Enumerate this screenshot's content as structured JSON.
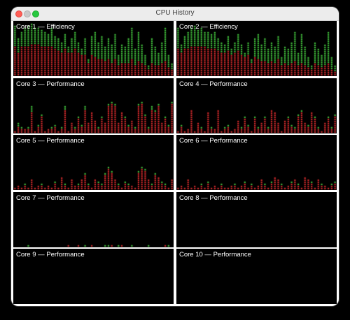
{
  "window": {
    "title": "CPU History"
  },
  "colors": {
    "user": "#3fb83a",
    "system": "#c8282a",
    "background": "#000000"
  },
  "cores": [
    {
      "label": "Core 1 — Efficiency",
      "type": "efficiency",
      "total": [
        0.95,
        0.7,
        0.85,
        0.9,
        0.95,
        1.0,
        0.9,
        0.92,
        0.88,
        0.85,
        0.8,
        0.9,
        0.75,
        0.7,
        0.65,
        0.8,
        0.55,
        0.7,
        0.85,
        0.65,
        0.5,
        0.7,
        0.3,
        0.75,
        0.85,
        0.65,
        0.75,
        0.55,
        0.7,
        0.6,
        0.8,
        0.4,
        0.6,
        0.55,
        0.7,
        0.9,
        0.5,
        0.85,
        0.6,
        0.4,
        0.2,
        0.7,
        0.55,
        0.45,
        0.65,
        0.9,
        0.4,
        0.25
      ],
      "system": [
        0.55,
        0.45,
        0.55,
        0.55,
        0.58,
        0.6,
        0.6,
        0.6,
        0.58,
        0.56,
        0.55,
        0.55,
        0.5,
        0.48,
        0.45,
        0.5,
        0.42,
        0.45,
        0.5,
        0.42,
        0.38,
        0.4,
        0.25,
        0.38,
        0.35,
        0.3,
        0.3,
        0.28,
        0.3,
        0.25,
        0.32,
        0.2,
        0.25,
        0.22,
        0.25,
        0.3,
        0.2,
        0.28,
        0.22,
        0.18,
        0.12,
        0.25,
        0.2,
        0.18,
        0.22,
        0.28,
        0.15,
        0.1
      ]
    },
    {
      "label": "Core 2 — Efficiency",
      "type": "efficiency",
      "total": [
        0.9,
        0.6,
        0.75,
        0.85,
        0.9,
        0.95,
        0.88,
        0.9,
        0.85,
        0.82,
        0.78,
        0.85,
        0.7,
        0.65,
        0.6,
        0.75,
        0.5,
        0.65,
        0.8,
        0.6,
        0.45,
        0.65,
        0.3,
        0.7,
        0.8,
        0.6,
        0.7,
        0.5,
        0.65,
        0.55,
        0.75,
        0.35,
        0.55,
        0.5,
        0.65,
        0.85,
        0.45,
        0.8,
        0.55,
        0.35,
        0.2,
        0.65,
        0.5,
        0.4,
        0.6,
        0.85,
        0.35,
        0.2
      ],
      "system": [
        0.5,
        0.42,
        0.5,
        0.52,
        0.55,
        0.58,
        0.57,
        0.56,
        0.55,
        0.53,
        0.52,
        0.52,
        0.48,
        0.45,
        0.42,
        0.48,
        0.4,
        0.42,
        0.48,
        0.4,
        0.35,
        0.38,
        0.22,
        0.35,
        0.32,
        0.28,
        0.28,
        0.25,
        0.28,
        0.22,
        0.3,
        0.18,
        0.22,
        0.2,
        0.22,
        0.28,
        0.18,
        0.25,
        0.2,
        0.15,
        0.1,
        0.22,
        0.18,
        0.15,
        0.2,
        0.25,
        0.12,
        0.08
      ]
    },
    {
      "label": "Core 3 — Performance",
      "type": "performance",
      "total": [
        0.05,
        0.2,
        0.1,
        0.08,
        0.1,
        0.5,
        0.05,
        0.15,
        0.35,
        0.05,
        0.08,
        0.1,
        0.15,
        0.05,
        0.1,
        0.5,
        0.05,
        0.2,
        0.1,
        0.3,
        0.15,
        0.5,
        0.2,
        0.4,
        0.25,
        0.1,
        0.3,
        0.2,
        0.55,
        0.6,
        0.55,
        0.2,
        0.4,
        0.3,
        0.15,
        0.25,
        0.1,
        0.55,
        0.6,
        0.35,
        0.1,
        0.5,
        0.45,
        0.55,
        0.2,
        0.3,
        0.15,
        0.6
      ],
      "system": [
        0.04,
        0.1,
        0.08,
        0.06,
        0.08,
        0.4,
        0.04,
        0.12,
        0.3,
        0.04,
        0.06,
        0.08,
        0.12,
        0.04,
        0.08,
        0.45,
        0.04,
        0.18,
        0.08,
        0.28,
        0.12,
        0.45,
        0.18,
        0.38,
        0.22,
        0.08,
        0.28,
        0.18,
        0.52,
        0.55,
        0.5,
        0.18,
        0.38,
        0.28,
        0.12,
        0.22,
        0.08,
        0.5,
        0.55,
        0.32,
        0.08,
        0.45,
        0.4,
        0.5,
        0.18,
        0.28,
        0.12,
        0.55
      ]
    },
    {
      "label": "Core 4 — Performance",
      "type": "performance",
      "total": [
        0.05,
        0.15,
        0.05,
        0.08,
        0.45,
        0.05,
        0.2,
        0.1,
        0.05,
        0.4,
        0.1,
        0.08,
        0.45,
        0.05,
        0.1,
        0.15,
        0.05,
        0.08,
        0.25,
        0.1,
        0.3,
        0.15,
        0.05,
        0.3,
        0.1,
        0.2,
        0.3,
        0.1,
        0.45,
        0.4,
        0.2,
        0.05,
        0.25,
        0.3,
        0.15,
        0.1,
        0.35,
        0.45,
        0.2,
        0.15,
        0.4,
        0.3,
        0.1,
        0.05,
        0.2,
        0.3,
        0.1,
        0.35
      ],
      "system": [
        0.04,
        0.12,
        0.04,
        0.06,
        0.42,
        0.04,
        0.18,
        0.08,
        0.04,
        0.38,
        0.08,
        0.06,
        0.42,
        0.04,
        0.08,
        0.12,
        0.04,
        0.06,
        0.22,
        0.08,
        0.28,
        0.12,
        0.04,
        0.28,
        0.08,
        0.18,
        0.28,
        0.08,
        0.42,
        0.38,
        0.18,
        0.04,
        0.22,
        0.28,
        0.12,
        0.08,
        0.32,
        0.4,
        0.18,
        0.12,
        0.38,
        0.28,
        0.08,
        0.04,
        0.18,
        0.28,
        0.08,
        0.32
      ]
    },
    {
      "label": "Core 5 — Performance",
      "type": "performance",
      "total": [
        0.05,
        0.08,
        0.05,
        0.1,
        0.05,
        0.2,
        0.05,
        0.08,
        0.1,
        0.05,
        0.08,
        0.05,
        0.15,
        0.05,
        0.25,
        0.1,
        0.05,
        0.2,
        0.08,
        0.1,
        0.2,
        0.3,
        0.1,
        0.05,
        0.2,
        0.15,
        0.1,
        0.3,
        0.45,
        0.35,
        0.2,
        0.1,
        0.05,
        0.15,
        0.1,
        0.08,
        0.05,
        0.35,
        0.45,
        0.4,
        0.2,
        0.1,
        0.3,
        0.25,
        0.15,
        0.1,
        0.05,
        0.2
      ],
      "system": [
        0.04,
        0.06,
        0.04,
        0.08,
        0.04,
        0.18,
        0.04,
        0.06,
        0.08,
        0.04,
        0.06,
        0.04,
        0.12,
        0.04,
        0.22,
        0.08,
        0.04,
        0.18,
        0.06,
        0.08,
        0.18,
        0.28,
        0.08,
        0.04,
        0.18,
        0.12,
        0.08,
        0.28,
        0.4,
        0.32,
        0.18,
        0.08,
        0.04,
        0.12,
        0.08,
        0.06,
        0.04,
        0.32,
        0.4,
        0.36,
        0.18,
        0.08,
        0.28,
        0.22,
        0.12,
        0.08,
        0.04,
        0.18
      ]
    },
    {
      "label": "Core 6 — Performance",
      "type": "performance",
      "total": [
        0.05,
        0.08,
        0.05,
        0.2,
        0.05,
        0.08,
        0.05,
        0.1,
        0.05,
        0.15,
        0.05,
        0.08,
        0.05,
        0.1,
        0.05,
        0.05,
        0.08,
        0.1,
        0.05,
        0.08,
        0.15,
        0.05,
        0.1,
        0.05,
        0.08,
        0.2,
        0.1,
        0.05,
        0.15,
        0.25,
        0.2,
        0.1,
        0.05,
        0.08,
        0.15,
        0.2,
        0.1,
        0.05,
        0.25,
        0.2,
        0.15,
        0.05,
        0.2,
        0.1,
        0.08,
        0.05,
        0.1,
        0.15
      ],
      "system": [
        0.04,
        0.06,
        0.04,
        0.18,
        0.04,
        0.06,
        0.04,
        0.08,
        0.04,
        0.12,
        0.04,
        0.06,
        0.04,
        0.08,
        0.04,
        0.04,
        0.06,
        0.08,
        0.04,
        0.06,
        0.12,
        0.04,
        0.08,
        0.04,
        0.06,
        0.18,
        0.08,
        0.04,
        0.12,
        0.22,
        0.18,
        0.08,
        0.04,
        0.06,
        0.12,
        0.18,
        0.08,
        0.04,
        0.22,
        0.18,
        0.12,
        0.04,
        0.18,
        0.08,
        0.06,
        0.04,
        0.08,
        0.12
      ]
    },
    {
      "label": "Core 7 — Performance",
      "type": "performance",
      "total": [
        0,
        0,
        0,
        0,
        0.04,
        0,
        0,
        0,
        0,
        0,
        0,
        0,
        0,
        0,
        0,
        0,
        0.04,
        0,
        0,
        0.05,
        0,
        0.04,
        0,
        0.05,
        0,
        0,
        0,
        0.05,
        0.04,
        0.05,
        0,
        0.04,
        0.05,
        0,
        0,
        0.04,
        0,
        0,
        0,
        0,
        0.04,
        0,
        0,
        0,
        0,
        0.05,
        0.04,
        0
      ],
      "system": [
        0,
        0,
        0,
        0,
        0,
        0,
        0,
        0,
        0,
        0,
        0,
        0,
        0,
        0,
        0,
        0,
        0.04,
        0,
        0,
        0.04,
        0,
        0,
        0,
        0.04,
        0,
        0,
        0,
        0,
        0,
        0.04,
        0,
        0,
        0.04,
        0,
        0,
        0,
        0,
        0,
        0,
        0,
        0,
        0,
        0,
        0,
        0,
        0.04,
        0,
        0
      ]
    },
    {
      "label": "Core 8 — Performance",
      "type": "performance",
      "total": [],
      "system": []
    },
    {
      "label": "Core 9 — Performance",
      "type": "performance",
      "total": [],
      "system": []
    },
    {
      "label": "Core 10 — Performance",
      "type": "performance",
      "total": [],
      "system": []
    }
  ]
}
